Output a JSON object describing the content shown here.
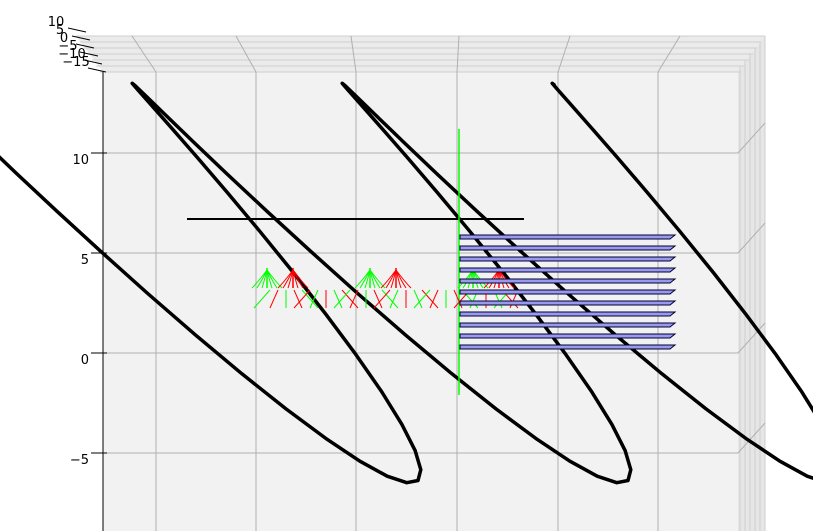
{
  "chart_data": {
    "type": "3d-line",
    "title": "",
    "xlabel": "",
    "ylabel": "",
    "zlabel": "",
    "grid": true,
    "pane_color": "#f2f2f2",
    "grid_color": "#b0b0b0",
    "axis_color": "#000000",
    "y_ticks": [
      10,
      5,
      0,
      -5
    ],
    "top_axis_ticks": [
      "10",
      "5",
      "0",
      "−5",
      "−10",
      "−15"
    ],
    "ylim": [
      -7,
      14
    ],
    "series": [
      {
        "kind": "helix",
        "color": "#000000",
        "line_width": 3.5,
        "turns": 3,
        "radius": 10,
        "center_y": 3.5,
        "x_start": -17,
        "x_step_per_turn": 10.5
      },
      {
        "kind": "axis-line",
        "color": "#000000",
        "x": [
          -21,
          15
        ],
        "y": [
          3.5,
          3.5
        ]
      },
      {
        "kind": "vertical-line",
        "color": "#00ff00",
        "x": 0,
        "y": [
          0.7,
          11.2
        ]
      },
      {
        "kind": "arrow-cluster",
        "colors": [
          "#00ff00",
          "#ff0000"
        ],
        "positions_x": [
          -19.5,
          -16.5,
          -9.5,
          -6.9,
          1.0,
          4.0
        ],
        "y_base": 3.5,
        "height": 1.0
      },
      {
        "kind": "fan-strokes",
        "colors": [
          "#00ff00",
          "#ff0000"
        ],
        "x_range": [
          -19,
          6.5
        ],
        "y_base": 3.5,
        "length": 1.0
      },
      {
        "kind": "plane-stack",
        "edge_color": "#000033",
        "face_color": "#9999ee",
        "count": 11,
        "x_range": [
          0,
          21
        ],
        "y_values": [
          5.8,
          5.25,
          4.7,
          4.15,
          3.6,
          3.05,
          2.5,
          1.95,
          1.4,
          0.85,
          0.3
        ]
      }
    ]
  }
}
